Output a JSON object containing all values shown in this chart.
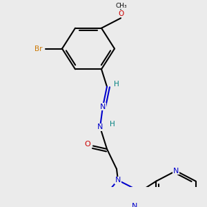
{
  "background_color": "#ebebeb",
  "colors": {
    "C": "#000000",
    "N": "#0000cc",
    "O": "#cc0000",
    "Br": "#cc7700",
    "H": "#008080",
    "bond": "#000000"
  },
  "figsize": [
    3.0,
    3.0
  ],
  "dpi": 100
}
